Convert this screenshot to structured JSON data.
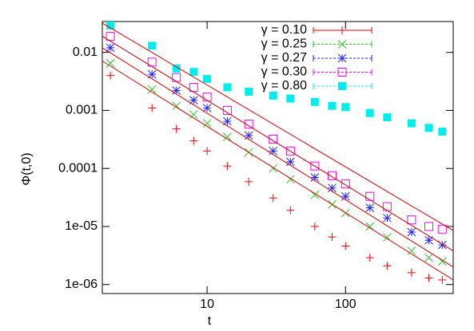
{
  "chart_data": {
    "type": "scatter",
    "x_label": "t",
    "y_label": "Φ(t,0)",
    "log_x": true,
    "log_y": true,
    "legend": "top-right",
    "x": [
      2,
      4,
      6,
      8,
      10,
      14,
      20,
      30,
      40,
      60,
      80,
      100,
      150,
      200,
      300,
      400,
      500
    ],
    "xlim": [
      1.75,
      600
    ],
    "xticks": [
      10,
      100
    ],
    "ylim": [
      7e-07,
      0.034
    ],
    "yticks": [
      0.01,
      0.001,
      0.0001,
      {
        "value": 1e-05,
        "label": "1e-05"
      },
      {
        "value": 1e-06,
        "label": "1e-06"
      }
    ],
    "series": [
      {
        "name": "γ = 0.10",
        "color": "#ff0000",
        "marker": "plus",
        "values": [
          0.004,
          0.0011,
          0.00048,
          0.0003,
          0.0002,
          0.00011,
          5.9e-05,
          3.1e-05,
          1.9e-05,
          1e-05,
          6.6e-06,
          4.6e-06,
          2.9e-06,
          2.1e-06,
          1.6e-06,
          1.3e-06,
          1.2e-06
        ]
      },
      {
        "name": "γ = 0.25",
        "color": "#22cc22",
        "marker": "cross",
        "values": [
          0.0065,
          0.0023,
          0.0012,
          0.00085,
          0.0006,
          0.00035,
          0.00019,
          0.0001,
          6.5e-05,
          3.5e-05,
          2.4e-05,
          1.7e-05,
          1e-05,
          6.5e-06,
          3.8e-06,
          2.9e-06,
          2.5e-06
        ]
      },
      {
        "name": "γ = 0.27",
        "color": "#2222ff",
        "marker": "star",
        "values": [
          0.012,
          0.0042,
          0.0022,
          0.0015,
          0.0011,
          0.00065,
          0.00037,
          0.0002,
          0.00013,
          7e-05,
          4.6e-05,
          3.3e-05,
          2.1e-05,
          1.4e-05,
          8e-06,
          5.8e-06,
          4.8e-06
        ]
      },
      {
        "name": "γ = 0.30",
        "color": "#ff00ff",
        "marker": "square",
        "values": [
          0.019,
          0.0068,
          0.0037,
          0.0025,
          0.0017,
          0.001,
          0.00058,
          0.00032,
          0.0002,
          0.00011,
          7.5e-05,
          5.4e-05,
          3.3e-05,
          2.2e-05,
          1.3e-05,
          1e-05,
          9e-06
        ]
      },
      {
        "name": "γ = 0.80",
        "color": "#00eeee",
        "marker": "filled-square",
        "values": [
          0.029,
          0.013,
          0.0053,
          0.0046,
          0.0035,
          0.0025,
          0.0021,
          0.0018,
          0.0016,
          0.0014,
          0.0012,
          0.00114,
          0.0009,
          0.00076,
          0.0006,
          0.0005,
          0.00043
        ]
      }
    ],
    "fit_lines": [
      {
        "color": "#e00000",
        "x": [
          1.75,
          600
        ],
        "values": [
          0.032,
          8.5e-06
        ]
      },
      {
        "color": "#e00000",
        "x": [
          1.75,
          600
        ],
        "values": [
          0.019,
          3.8e-06
        ]
      },
      {
        "color": "#e00000",
        "x": [
          1.75,
          600
        ],
        "values": [
          0.012,
          2e-06
        ]
      },
      {
        "color": "#e00000",
        "x": [
          1.75,
          600
        ],
        "values": [
          0.0071,
          1.2e-06
        ]
      }
    ]
  }
}
